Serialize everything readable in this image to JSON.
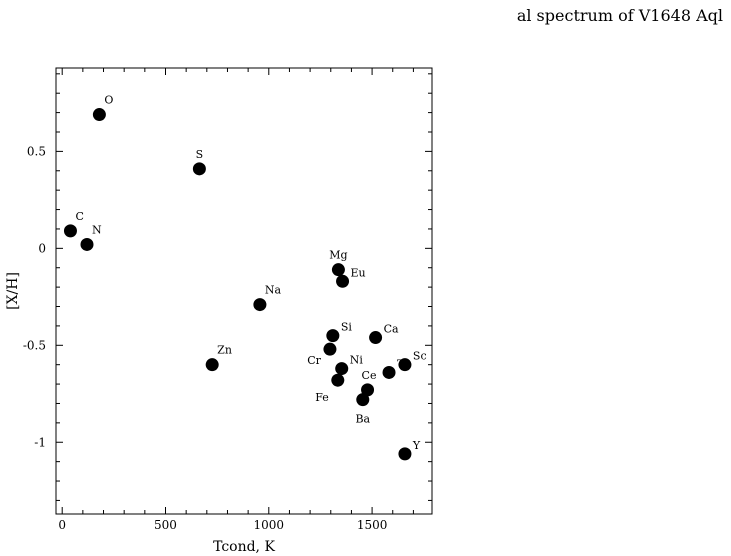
{
  "heading": "al spectrum of V1648 Aql",
  "chart_data": {
    "type": "scatter",
    "xlabel": "Tcond, K",
    "ylabel": "[X/H]",
    "xlim": [
      -30,
      1790
    ],
    "ylim": [
      -1.37,
      0.93
    ],
    "xticks": [
      0,
      500,
      1000,
      1500
    ],
    "yticks": [
      -1,
      -0.5,
      0,
      0.5
    ],
    "xtick_labels": [
      "0",
      "500",
      "1000",
      "1500"
    ],
    "ytick_labels": [
      "-1",
      "-0.5",
      "0",
      "0.5"
    ],
    "grid": false,
    "marker_color": "#000000",
    "points": [
      {
        "label": "O",
        "x": 180,
        "y": 0.69,
        "label_pos": "above-right"
      },
      {
        "label": "S",
        "x": 664,
        "y": 0.41,
        "label_pos": "above"
      },
      {
        "label": "C",
        "x": 40,
        "y": 0.09,
        "label_pos": "above-right"
      },
      {
        "label": "N",
        "x": 120,
        "y": 0.02,
        "label_pos": "above-right"
      },
      {
        "label": "Mg",
        "x": 1337,
        "y": -0.11,
        "label_pos": "above"
      },
      {
        "label": "Eu",
        "x": 1357,
        "y": -0.17,
        "label_pos": "upper-right"
      },
      {
        "label": "Na",
        "x": 957,
        "y": -0.29,
        "label_pos": "above-right"
      },
      {
        "label": "Si",
        "x": 1310,
        "y": -0.45,
        "label_pos": "upper-right"
      },
      {
        "label": "Ca",
        "x": 1517,
        "y": -0.46,
        "label_pos": "upper-right"
      },
      {
        "label": "Cr",
        "x": 1296,
        "y": -0.52,
        "label_pos": "lower-left"
      },
      {
        "label": "Zn",
        "x": 726,
        "y": -0.6,
        "label_pos": "above-right"
      },
      {
        "label": "Ni",
        "x": 1353,
        "y": -0.62,
        "label_pos": "upper-right"
      },
      {
        "label": "Sc",
        "x": 1659,
        "y": -0.6,
        "label_pos": "upper-right"
      },
      {
        "label": "Ti",
        "x": 1582,
        "y": -0.64,
        "label_pos": "upper-right"
      },
      {
        "label": "Fe",
        "x": 1334,
        "y": -0.68,
        "label_pos": "below-left"
      },
      {
        "label": "Ce",
        "x": 1478,
        "y": -0.73,
        "label_pos": "above-right-up"
      },
      {
        "label": "Ba",
        "x": 1455,
        "y": -0.78,
        "label_pos": "below"
      },
      {
        "label": "Y",
        "x": 1659,
        "y": -1.06,
        "label_pos": "upper-right"
      }
    ]
  }
}
